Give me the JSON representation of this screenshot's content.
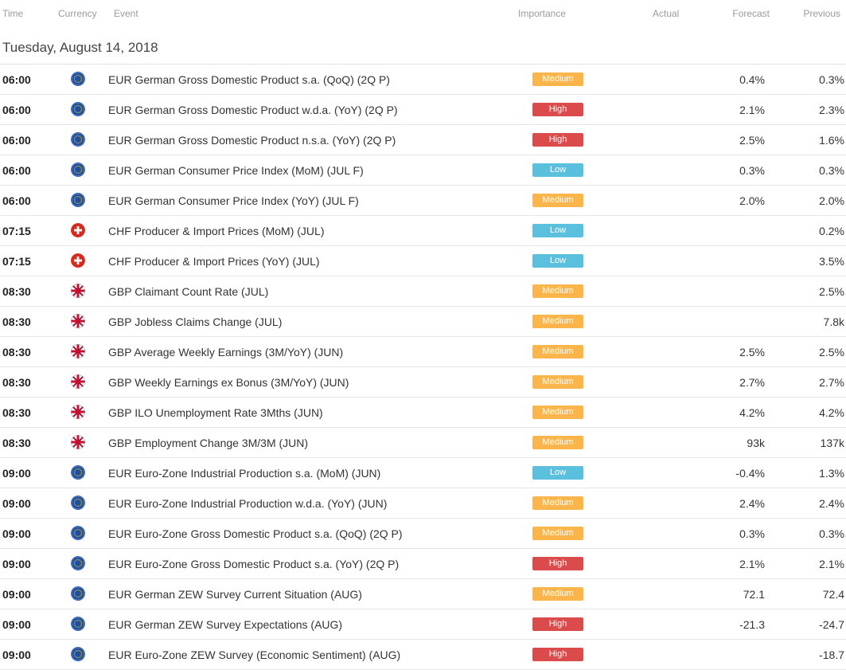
{
  "header": {
    "time": "Time",
    "currency": "Currency",
    "event": "Event",
    "importance": "Importance",
    "actual": "Actual",
    "forecast": "Forecast",
    "previous": "Previous"
  },
  "date_label": "Tuesday, August 14, 2018",
  "importance_colors": {
    "Medium": "#fbb54b",
    "High": "#db4b4b",
    "Low": "#5bc0de"
  },
  "rows": [
    {
      "time": "06:00",
      "flag": "eu-flag-icon",
      "event": "EUR German Gross Domestic Product s.a. (QoQ) (2Q P)",
      "importance": "Medium",
      "actual": "",
      "forecast": "0.4%",
      "previous": "0.3%"
    },
    {
      "time": "06:00",
      "flag": "eu-flag-icon",
      "event": "EUR German Gross Domestic Product w.d.a. (YoY) (2Q P)",
      "importance": "High",
      "actual": "",
      "forecast": "2.1%",
      "previous": "2.3%"
    },
    {
      "time": "06:00",
      "flag": "eu-flag-icon",
      "event": "EUR German Gross Domestic Product n.s.a. (YoY) (2Q P)",
      "importance": "High",
      "actual": "",
      "forecast": "2.5%",
      "previous": "1.6%"
    },
    {
      "time": "06:00",
      "flag": "eu-flag-icon",
      "event": "EUR German Consumer Price Index (MoM) (JUL F)",
      "importance": "Low",
      "actual": "",
      "forecast": "0.3%",
      "previous": "0.3%"
    },
    {
      "time": "06:00",
      "flag": "eu-flag-icon",
      "event": "EUR German Consumer Price Index (YoY) (JUL F)",
      "importance": "Medium",
      "actual": "",
      "forecast": "2.0%",
      "previous": "2.0%"
    },
    {
      "time": "07:15",
      "flag": "swiss-flag-icon",
      "event": "CHF Producer & Import Prices (MoM) (JUL)",
      "importance": "Low",
      "actual": "",
      "forecast": "",
      "previous": "0.2%"
    },
    {
      "time": "07:15",
      "flag": "swiss-flag-icon",
      "event": "CHF Producer & Import Prices (YoY) (JUL)",
      "importance": "Low",
      "actual": "",
      "forecast": "",
      "previous": "3.5%"
    },
    {
      "time": "08:30",
      "flag": "uk-flag-icon",
      "event": "GBP Claimant Count Rate (JUL)",
      "importance": "Medium",
      "actual": "",
      "forecast": "",
      "previous": "2.5%"
    },
    {
      "time": "08:30",
      "flag": "uk-flag-icon",
      "event": "GBP Jobless Claims Change (JUL)",
      "importance": "Medium",
      "actual": "",
      "forecast": "",
      "previous": "7.8k"
    },
    {
      "time": "08:30",
      "flag": "uk-flag-icon",
      "event": "GBP Average Weekly Earnings (3M/YoY) (JUN)",
      "importance": "Medium",
      "actual": "",
      "forecast": "2.5%",
      "previous": "2.5%"
    },
    {
      "time": "08:30",
      "flag": "uk-flag-icon",
      "event": "GBP Weekly Earnings ex Bonus (3M/YoY) (JUN)",
      "importance": "Medium",
      "actual": "",
      "forecast": "2.7%",
      "previous": "2.7%"
    },
    {
      "time": "08:30",
      "flag": "uk-flag-icon",
      "event": "GBP ILO Unemployment Rate 3Mths (JUN)",
      "importance": "Medium",
      "actual": "",
      "forecast": "4.2%",
      "previous": "4.2%"
    },
    {
      "time": "08:30",
      "flag": "uk-flag-icon",
      "event": "GBP Employment Change 3M/3M (JUN)",
      "importance": "Medium",
      "actual": "",
      "forecast": "93k",
      "previous": "137k"
    },
    {
      "time": "09:00",
      "flag": "eu-flag-icon",
      "event": "EUR Euro-Zone Industrial Production s.a. (MoM) (JUN)",
      "importance": "Low",
      "actual": "",
      "forecast": "-0.4%",
      "previous": "1.3%"
    },
    {
      "time": "09:00",
      "flag": "eu-flag-icon",
      "event": "EUR Euro-Zone Industrial Production w.d.a. (YoY) (JUN)",
      "importance": "Medium",
      "actual": "",
      "forecast": "2.4%",
      "previous": "2.4%"
    },
    {
      "time": "09:00",
      "flag": "eu-flag-icon",
      "event": "EUR Euro-Zone Gross Domestic Product s.a. (QoQ) (2Q P)",
      "importance": "Medium",
      "actual": "",
      "forecast": "0.3%",
      "previous": "0.3%"
    },
    {
      "time": "09:00",
      "flag": "eu-flag-icon",
      "event": "EUR Euro-Zone Gross Domestic Product s.a. (YoY) (2Q P)",
      "importance": "High",
      "actual": "",
      "forecast": "2.1%",
      "previous": "2.1%"
    },
    {
      "time": "09:00",
      "flag": "eu-flag-icon",
      "event": "EUR German ZEW Survey Current Situation (AUG)",
      "importance": "Medium",
      "actual": "",
      "forecast": "72.1",
      "previous": "72.4"
    },
    {
      "time": "09:00",
      "flag": "eu-flag-icon",
      "event": "EUR German ZEW Survey Expectations (AUG)",
      "importance": "High",
      "actual": "",
      "forecast": "-21.3",
      "previous": "-24.7"
    },
    {
      "time": "09:00",
      "flag": "eu-flag-icon",
      "event": "EUR Euro-Zone ZEW Survey (Economic Sentiment) (AUG)",
      "importance": "High",
      "actual": "",
      "forecast": "",
      "previous": "-18.7"
    }
  ]
}
